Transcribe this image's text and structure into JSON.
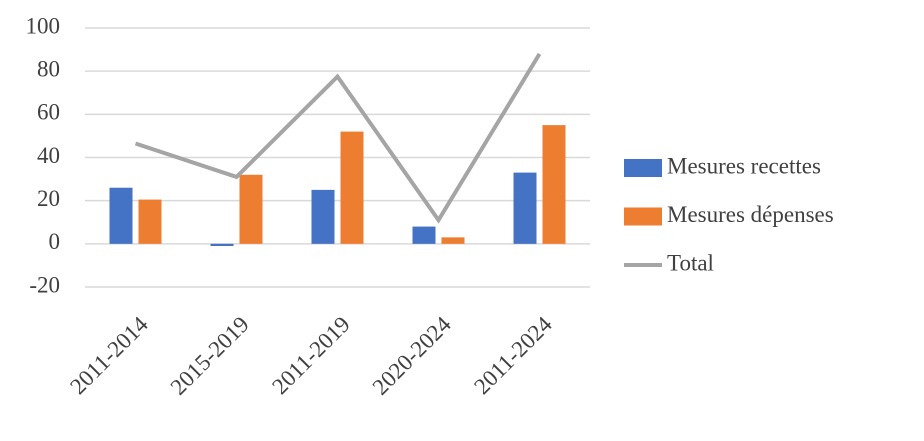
{
  "chart_data": {
    "type": "bar",
    "categories": [
      "2011-2014",
      "2015-2019",
      "2011-2019",
      "2020-2024",
      "2011-2024"
    ],
    "series": [
      {
        "name": "Mesures recettes",
        "type": "bar",
        "color": "#4472c4",
        "values": [
          26,
          -1,
          25,
          8,
          33
        ]
      },
      {
        "name": "Mesures dépenses",
        "type": "bar",
        "color": "#ed7d31",
        "values": [
          20.5,
          32,
          52,
          3,
          55
        ]
      },
      {
        "name": "Total",
        "type": "line",
        "color": "#a5a5a5",
        "values": [
          46.5,
          31,
          77.5,
          11,
          88
        ]
      }
    ],
    "ylim": [
      -20,
      100
    ],
    "yticks": [
      -20,
      0,
      20,
      40,
      60,
      80,
      100
    ],
    "grid": true,
    "legend": "right"
  }
}
